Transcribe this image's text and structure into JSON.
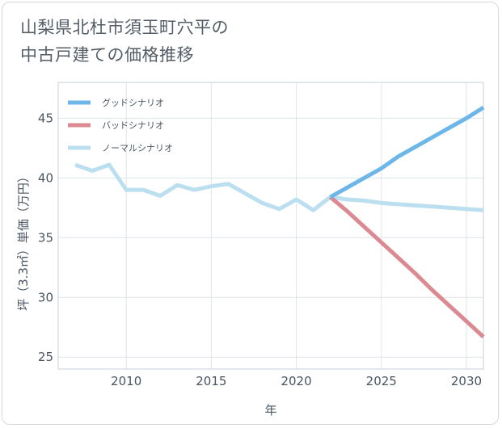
{
  "chart_data": {
    "type": "line",
    "title_lines": [
      "山梨県北杜市須玉町穴平の",
      "中古戸建ての価格推移"
    ],
    "xlabel": "年",
    "ylabel": "坪（3.3㎡）単価（万円）",
    "xlim": [
      2006,
      2031
    ],
    "ylim": [
      24,
      48
    ],
    "xticks": [
      2010,
      2015,
      2020,
      2025,
      2030
    ],
    "yticks": [
      25,
      30,
      35,
      40,
      45
    ],
    "grid": true,
    "legend_position": "top-left",
    "series": [
      {
        "name": "グッドシナリオ",
        "color": "#6cb6ea",
        "x": [
          2022,
          2023,
          2024,
          2025,
          2026,
          2027,
          2028,
          2029,
          2030,
          2031
        ],
        "values": [
          38.4,
          39.2,
          40.0,
          40.8,
          41.8,
          42.6,
          43.4,
          44.2,
          45.0,
          45.9
        ]
      },
      {
        "name": "バッドシナリオ",
        "color": "#dc8a92",
        "x": [
          2022,
          2023,
          2024,
          2025,
          2026,
          2027,
          2028,
          2029,
          2030,
          2031
        ],
        "values": [
          38.4,
          37.2,
          35.9,
          34.6,
          33.3,
          32.0,
          30.6,
          29.3,
          28.0,
          26.7
        ]
      },
      {
        "name": "ノーマルシナリオ",
        "color": "#bcdff0",
        "x": [
          2007,
          2008,
          2009,
          2010,
          2011,
          2012,
          2013,
          2014,
          2015,
          2016,
          2017,
          2018,
          2019,
          2020,
          2021,
          2022,
          2023,
          2024,
          2025,
          2026,
          2027,
          2028,
          2029,
          2030,
          2031
        ],
        "values": [
          41.1,
          40.6,
          41.1,
          39.0,
          39.0,
          38.5,
          39.4,
          39.0,
          39.3,
          39.5,
          38.7,
          37.9,
          37.4,
          38.2,
          37.3,
          38.4,
          38.2,
          38.1,
          37.9,
          37.8,
          37.7,
          37.6,
          37.5,
          37.4,
          37.3
        ]
      }
    ]
  }
}
